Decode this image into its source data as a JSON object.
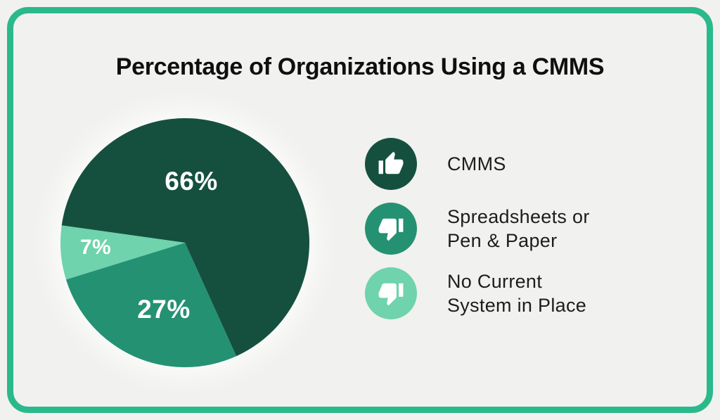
{
  "title": "Percentage of Organizations Using a CMMS",
  "chart_data": {
    "type": "pie",
    "title": "Percentage of Organizations Using a CMMS",
    "start_angle_deg": 278,
    "legend_position": "right",
    "slices": [
      {
        "label": "CMMS",
        "value": 66,
        "display": "66%",
        "color": "#15503e"
      },
      {
        "label": "Spreadsheets or Pen & Paper",
        "value": 27,
        "display": "27%",
        "color": "#249172"
      },
      {
        "label": "No Current System in Place",
        "value": 7,
        "display": "7%",
        "color": "#6fd3ad"
      }
    ]
  },
  "legend": {
    "items": [
      {
        "label": "CMMS",
        "icon": "thumbs-up-icon"
      },
      {
        "label": "Spreadsheets or\nPen & Paper",
        "icon": "thumbs-down-icon"
      },
      {
        "label": "No Current\nSystem in Place",
        "icon": "thumbs-down-icon"
      }
    ]
  },
  "colors": {
    "background": "#f1f1ef",
    "border_green": "#2ab98b",
    "dark_green": "#15503e",
    "medium_green": "#249172",
    "light_green": "#6fd3ad",
    "title_text": "#0f0f0f",
    "legend_text": "#1d1d1d",
    "slice_label_text": "#ffffff"
  }
}
